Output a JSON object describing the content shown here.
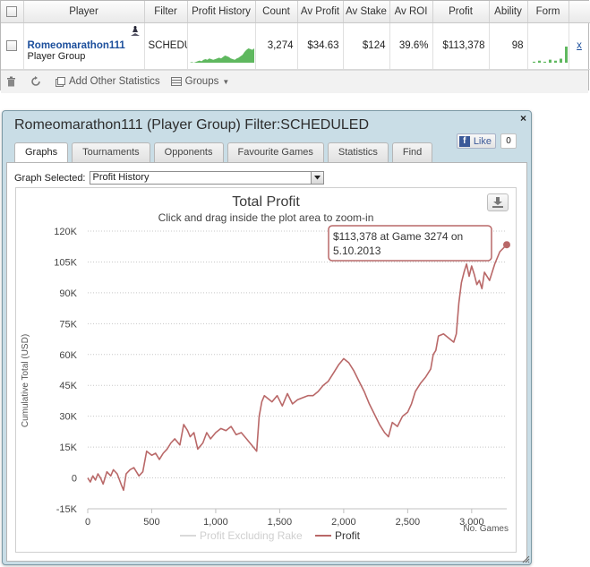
{
  "stats_table": {
    "columns": [
      "Player",
      "Filter",
      "Profit History",
      "Count",
      "Av Profit",
      "Av Stake",
      "Av ROI",
      "Profit",
      "Ability",
      "Form"
    ],
    "row": {
      "player_name": "Romeomarathon111",
      "player_type": "Player Group",
      "filter": "SCHEDULED",
      "count": "3,274",
      "av_profit": "$34.63",
      "av_stake": "$124",
      "av_roi": "39.6%",
      "profit": "$113,378",
      "ability": "98",
      "remove": "x"
    },
    "toolbar": {
      "add_stats_label": "Add Other Statistics",
      "groups_label": "Groups"
    }
  },
  "dialog": {
    "title": "Romeomarathon111 (Player Group) Filter:SCHEDULED",
    "tabs": [
      "Graphs",
      "Tournaments",
      "Opponents",
      "Favourite Games",
      "Statistics",
      "Find"
    ],
    "active_tab": "Graphs",
    "like_label": "Like",
    "like_count": "0",
    "graph_selected_label": "Graph Selected:",
    "graph_selected_value": "Profit History",
    "close_glyph": "×"
  },
  "chart_data": {
    "type": "line",
    "title": "Total Profit",
    "subtitle": "Click and drag inside the plot area to zoom-in",
    "xlabel": "No. Games",
    "ylabel": "Cumulative Total (USD)",
    "xlim": [
      0,
      3274
    ],
    "ylim": [
      -15000,
      120000
    ],
    "x_ticks": [
      0,
      500,
      1000,
      1500,
      2000,
      2500,
      3000
    ],
    "x_tick_labels": [
      "0",
      "500",
      "1,000",
      "1,500",
      "2,000",
      "2,500",
      "3,000"
    ],
    "y_ticks": [
      -15000,
      0,
      15000,
      30000,
      45000,
      60000,
      75000,
      90000,
      105000,
      120000
    ],
    "y_tick_labels": [
      "-15K",
      "0",
      "15K",
      "30K",
      "45K",
      "60K",
      "75K",
      "90K",
      "105K",
      "120K"
    ],
    "grid": "horizontal dotted",
    "legend": "bottom",
    "tooltip": "$113,378 at Game 3274 on 5.10.2013",
    "colors": {
      "profit": "#b96868",
      "excluding_rake": "#d9d9d9",
      "sparkline": "#5fb85f",
      "form": "#5fb85f"
    },
    "series": [
      {
        "name": "Profit Excluding Rake",
        "values": []
      },
      {
        "name": "Profit",
        "x": [
          0,
          20,
          40,
          60,
          80,
          100,
          120,
          150,
          180,
          200,
          230,
          260,
          280,
          300,
          330,
          360,
          400,
          430,
          460,
          480,
          500,
          530,
          560,
          590,
          620,
          650,
          680,
          720,
          750,
          780,
          800,
          830,
          860,
          900,
          930,
          960,
          1000,
          1040,
          1080,
          1120,
          1160,
          1200,
          1240,
          1280,
          1320,
          1340,
          1360,
          1380,
          1400,
          1440,
          1480,
          1520,
          1560,
          1600,
          1640,
          1680,
          1720,
          1760,
          1800,
          1840,
          1880,
          1920,
          1960,
          2000,
          2040,
          2080,
          2120,
          2160,
          2200,
          2240,
          2280,
          2320,
          2350,
          2380,
          2420,
          2460,
          2500,
          2530,
          2560,
          2600,
          2640,
          2680,
          2700,
          2720,
          2740,
          2780,
          2820,
          2860,
          2880,
          2900,
          2920,
          2940,
          2960,
          2980,
          3000,
          3020,
          3040,
          3060,
          3080,
          3100,
          3140,
          3180,
          3220,
          3274
        ],
        "values": [
          0,
          -2000,
          1000,
          -1000,
          2000,
          0,
          -3000,
          3000,
          1000,
          4000,
          2000,
          -3000,
          -6000,
          2000,
          4000,
          5000,
          1000,
          3000,
          13000,
          12000,
          11000,
          12000,
          9000,
          12000,
          14000,
          17000,
          19000,
          16000,
          26000,
          23000,
          20000,
          22000,
          14000,
          17000,
          22000,
          19000,
          22000,
          24000,
          23000,
          25000,
          21000,
          22000,
          19000,
          16000,
          13000,
          30000,
          37000,
          40000,
          39000,
          37000,
          40000,
          35000,
          41000,
          36000,
          38000,
          39000,
          40000,
          40000,
          42000,
          45000,
          47000,
          51000,
          55000,
          58000,
          56000,
          52000,
          47000,
          42000,
          36000,
          31000,
          26000,
          22000,
          20000,
          27000,
          25000,
          30000,
          32000,
          36000,
          42000,
          46000,
          49000,
          53000,
          60000,
          62000,
          69000,
          70000,
          68000,
          66000,
          70000,
          85000,
          95000,
          100000,
          104000,
          98000,
          103000,
          99000,
          94000,
          96000,
          92000,
          100000,
          96000,
          104000,
          110000,
          113378
        ]
      }
    ],
    "spark_values": [
      0,
      1,
      0,
      1,
      2,
      3,
      2,
      4,
      5,
      4,
      6,
      5,
      4,
      5,
      6,
      7,
      6,
      8,
      10,
      9,
      8,
      6,
      5,
      4,
      6,
      7,
      9,
      11,
      15,
      18,
      20,
      19,
      18,
      20
    ],
    "form_values": [
      1,
      2,
      1,
      3,
      2,
      4,
      16
    ]
  }
}
